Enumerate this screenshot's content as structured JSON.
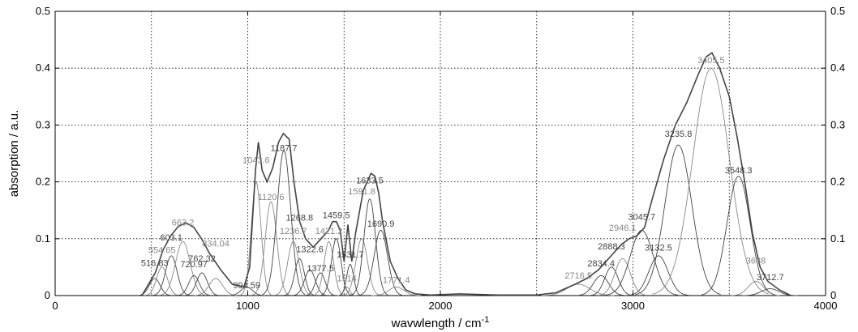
{
  "chart_data": {
    "type": "line",
    "xlabel": "wavwlength / cm-1",
    "ylabel": "absorption / a.u.",
    "xlim": [
      0,
      4000
    ],
    "ylim": [
      0,
      0.5
    ],
    "x_ticks": [
      0,
      1000,
      2000,
      3000,
      4000
    ],
    "x_tick_labels": [
      "0",
      "1000",
      "2000",
      "3000",
      "4000"
    ],
    "y_ticks": [
      0,
      0.1,
      0.2,
      0.3,
      0.4,
      0.5
    ],
    "y_tick_labels": [
      "0",
      "0.1",
      "0.2",
      "0.3",
      "0.4",
      "0.5"
    ],
    "x_grid_lines": [
      500,
      1000,
      1500,
      2000,
      2500,
      3000,
      3500
    ],
    "y_grid_lines": [
      0.1,
      0.2,
      0.3,
      0.4
    ],
    "grid": true,
    "grid_style": "dotted",
    "right_axis_mirrored": true,
    "envelope_color": "#444444",
    "series": [
      {
        "values": [
          [
            450,
            0.0
          ],
          [
            520,
            0.04
          ],
          [
            560,
            0.08
          ],
          [
            600,
            0.105
          ],
          [
            640,
            0.122
          ],
          [
            680,
            0.128
          ],
          [
            720,
            0.12
          ],
          [
            760,
            0.1
          ],
          [
            800,
            0.075
          ],
          [
            860,
            0.045
          ],
          [
            920,
            0.02
          ],
          [
            980,
            0.015
          ],
          [
            1010,
            0.05
          ],
          [
            1040,
            0.22
          ],
          [
            1055,
            0.27
          ],
          [
            1075,
            0.22
          ],
          [
            1100,
            0.2
          ],
          [
            1130,
            0.225
          ],
          [
            1160,
            0.27
          ],
          [
            1185,
            0.285
          ],
          [
            1215,
            0.275
          ],
          [
            1240,
            0.2
          ],
          [
            1270,
            0.13
          ],
          [
            1300,
            0.1
          ],
          [
            1340,
            0.085
          ],
          [
            1380,
            0.1
          ],
          [
            1420,
            0.115
          ],
          [
            1440,
            0.13
          ],
          [
            1460,
            0.13
          ],
          [
            1480,
            0.115
          ],
          [
            1500,
            0.06
          ],
          [
            1520,
            0.125
          ],
          [
            1540,
            0.06
          ],
          [
            1560,
            0.11
          ],
          [
            1600,
            0.185
          ],
          [
            1640,
            0.215
          ],
          [
            1660,
            0.21
          ],
          [
            1680,
            0.18
          ],
          [
            1700,
            0.13
          ],
          [
            1740,
            0.06
          ],
          [
            1780,
            0.03
          ],
          [
            1820,
            0.01
          ],
          [
            1870,
            0.003
          ],
          [
            1950,
            0.001
          ],
          [
            2100,
            0.003
          ],
          [
            2300,
            0.001
          ],
          [
            2500,
            0.001
          ],
          [
            2600,
            0.005
          ],
          [
            2700,
            0.02
          ],
          [
            2760,
            0.03
          ],
          [
            2820,
            0.045
          ],
          [
            2860,
            0.06
          ],
          [
            2900,
            0.075
          ],
          [
            2940,
            0.09
          ],
          [
            2980,
            0.1
          ],
          [
            3020,
            0.105
          ],
          [
            3060,
            0.12
          ],
          [
            3100,
            0.17
          ],
          [
            3160,
            0.24
          ],
          [
            3220,
            0.3
          ],
          [
            3280,
            0.34
          ],
          [
            3340,
            0.39
          ],
          [
            3380,
            0.42
          ],
          [
            3410,
            0.427
          ],
          [
            3450,
            0.4
          ],
          [
            3500,
            0.35
          ],
          [
            3540,
            0.28
          ],
          [
            3580,
            0.2
          ],
          [
            3620,
            0.11
          ],
          [
            3660,
            0.05
          ],
          [
            3700,
            0.025
          ],
          [
            3760,
            0.01
          ],
          [
            3820,
            0.0
          ]
        ]
      },
      {
        "name": "Lorentzian/Gaussian component peaks",
        "values": []
      }
    ],
    "peaks": [
      {
        "pos": 516.83,
        "height": 0.03,
        "width": 28,
        "label": "516.83",
        "color": "#444444"
      },
      {
        "pos": 554.65,
        "height": 0.05,
        "width": 28,
        "label": "554.65",
        "color": "#888888"
      },
      {
        "pos": 603.1,
        "height": 0.07,
        "width": 30,
        "label": "603.1",
        "color": "#444444"
      },
      {
        "pos": 663.2,
        "height": 0.095,
        "width": 38,
        "label": "663.2",
        "color": "#888888"
      },
      {
        "pos": 720.97,
        "height": 0.035,
        "width": 28,
        "label": "720.97",
        "color": "#444444"
      },
      {
        "pos": 762.32,
        "height": 0.04,
        "width": 28,
        "label": "762.32",
        "color": "#444444"
      },
      {
        "pos": 834.04,
        "height": 0.03,
        "width": 35,
        "label": "834.04",
        "color": "#888888"
      },
      {
        "pos": 994.59,
        "height": 0.015,
        "width": 30,
        "label": "994.59",
        "color": "#444444"
      },
      {
        "pos": 1043.6,
        "height": 0.2,
        "width": 25,
        "label": "1043.6",
        "color": "#888888"
      },
      {
        "pos": 1120.6,
        "height": 0.165,
        "width": 30,
        "label": "1120.6",
        "color": "#888888"
      },
      {
        "pos": 1187.7,
        "height": 0.255,
        "width": 35,
        "label": "1187.7",
        "color": "#444444"
      },
      {
        "pos": 1236.7,
        "height": 0.095,
        "width": 30,
        "label": "1236.7",
        "color": "#888888"
      },
      {
        "pos": 1268.8,
        "height": 0.065,
        "width": 25,
        "label": "1268.8",
        "color": "#444444"
      },
      {
        "pos": 1322.6,
        "height": 0.045,
        "width": 28,
        "label": "1322.6",
        "color": "#444444"
      },
      {
        "pos": 1377.5,
        "height": 0.04,
        "width": 25,
        "label": "1377.5",
        "color": "#444444"
      },
      {
        "pos": 1421.2,
        "height": 0.095,
        "width": 25,
        "label": "1421.2",
        "color": "#888888"
      },
      {
        "pos": 1459.5,
        "height": 0.1,
        "width": 25,
        "label": "1459.5",
        "color": "#444444"
      },
      {
        "pos": 1514,
        "height": 0.015,
        "width": 15,
        "label": "1514",
        "color": "#888888"
      },
      {
        "pos": 1531.7,
        "height": 0.055,
        "width": 18,
        "label": "1531.7",
        "color": "#444444"
      },
      {
        "pos": 1591.8,
        "height": 0.1,
        "width": 30,
        "label": "1591.8",
        "color": "#888888"
      },
      {
        "pos": 1633.5,
        "height": 0.17,
        "width": 30,
        "label": "1633.5",
        "color": "#444444"
      },
      {
        "pos": 1690.9,
        "height": 0.115,
        "width": 35,
        "label": "1690.9",
        "color": "#444444"
      },
      {
        "pos": 1771.4,
        "height": 0.015,
        "width": 40,
        "label": "1771.4",
        "color": "#888888"
      },
      {
        "pos": 2716.5,
        "height": 0.02,
        "width": 60,
        "label": "2716.5",
        "color": "#888888"
      },
      {
        "pos": 2834.4,
        "height": 0.035,
        "width": 40,
        "label": "2834.4",
        "color": "#444444"
      },
      {
        "pos": 2888.3,
        "height": 0.05,
        "width": 35,
        "label": "2888.3",
        "color": "#444444"
      },
      {
        "pos": 2946.1,
        "height": 0.065,
        "width": 40,
        "label": "2946.1",
        "color": "#888888"
      },
      {
        "pos": 3045.7,
        "height": 0.115,
        "width": 60,
        "label": "3045.7",
        "color": "#444444"
      },
      {
        "pos": 3132.5,
        "height": 0.07,
        "width": 50,
        "label": "3132.5",
        "color": "#444444"
      },
      {
        "pos": 3235.8,
        "height": 0.265,
        "width": 70,
        "label": "3235.8",
        "color": "#444444"
      },
      {
        "pos": 3405.5,
        "height": 0.4,
        "width": 95,
        "label": "3405.5",
        "color": "#888888"
      },
      {
        "pos": 3548.3,
        "height": 0.21,
        "width": 60,
        "label": "3548.3",
        "color": "#444444"
      },
      {
        "pos": 3638,
        "height": 0.025,
        "width": 40,
        "label": "3638",
        "color": "#888888"
      },
      {
        "pos": 3712.7,
        "height": 0.012,
        "width": 45,
        "label": "3712.7",
        "color": "#444444"
      }
    ],
    "peak_labels": [
      {
        "text": "516.83",
        "x": 516.83,
        "y": 0.052,
        "color": "#444444"
      },
      {
        "text": "554.65",
        "x": 554.65,
        "y": 0.075,
        "color": "#888888"
      },
      {
        "text": "603.1",
        "x": 603.1,
        "y": 0.097,
        "color": "#444444"
      },
      {
        "text": "663.2",
        "x": 663.2,
        "y": 0.123,
        "color": "#888888"
      },
      {
        "text": "720.97",
        "x": 720.97,
        "y": 0.05,
        "color": "#444444"
      },
      {
        "text": "762.32",
        "x": 762.32,
        "y": 0.06,
        "color": "#444444"
      },
      {
        "text": "834.04",
        "x": 834.04,
        "y": 0.086,
        "color": "#888888"
      },
      {
        "text": "994.59",
        "x": 994.59,
        "y": 0.013,
        "color": "#444444"
      },
      {
        "text": "1043.6",
        "x": 1043.6,
        "y": 0.233,
        "color": "#888888"
      },
      {
        "text": "1120.6",
        "x": 1120.6,
        "y": 0.168,
        "color": "#888888"
      },
      {
        "text": "1187.7",
        "x": 1187.7,
        "y": 0.254,
        "color": "#444444"
      },
      {
        "text": "1236.7",
        "x": 1236.7,
        "y": 0.108,
        "color": "#888888"
      },
      {
        "text": "1268.8",
        "x": 1268.8,
        "y": 0.132,
        "color": "#444444"
      },
      {
        "text": "1322.6",
        "x": 1322.6,
        "y": 0.076,
        "color": "#444444"
      },
      {
        "text": "1377.5",
        "x": 1377.5,
        "y": 0.043,
        "color": "#444444"
      },
      {
        "text": "1421.2",
        "x": 1421.2,
        "y": 0.108,
        "color": "#888888"
      },
      {
        "text": "1459.5",
        "x": 1459.5,
        "y": 0.136,
        "color": "#444444"
      },
      {
        "text": "1514",
        "x": 1514,
        "y": 0.025,
        "color": "#888888"
      },
      {
        "text": "1531.7",
        "x": 1531.7,
        "y": 0.067,
        "color": "#444444"
      },
      {
        "text": "1591.8",
        "x": 1591.8,
        "y": 0.178,
        "color": "#888888"
      },
      {
        "text": "1633.5",
        "x": 1633.5,
        "y": 0.197,
        "color": "#444444"
      },
      {
        "text": "1690.9",
        "x": 1690.9,
        "y": 0.121,
        "color": "#444444"
      },
      {
        "text": "1771.4",
        "x": 1771.4,
        "y": 0.022,
        "color": "#888888"
      },
      {
        "text": "2716.5",
        "x": 2716.5,
        "y": 0.03,
        "color": "#888888"
      },
      {
        "text": "2834.4",
        "x": 2834.4,
        "y": 0.051,
        "color": "#444444"
      },
      {
        "text": "2888.3",
        "x": 2888.3,
        "y": 0.081,
        "color": "#444444"
      },
      {
        "text": "2946.1",
        "x": 2946.1,
        "y": 0.114,
        "color": "#888888"
      },
      {
        "text": "3045.7",
        "x": 3045.7,
        "y": 0.133,
        "color": "#444444"
      },
      {
        "text": "3132.5",
        "x": 3132.5,
        "y": 0.079,
        "color": "#444444"
      },
      {
        "text": "3235.8",
        "x": 3235.8,
        "y": 0.279,
        "color": "#444444"
      },
      {
        "text": "3405.5",
        "x": 3405.5,
        "y": 0.409,
        "color": "#888888"
      },
      {
        "text": "3548.3",
        "x": 3548.3,
        "y": 0.215,
        "color": "#444444"
      },
      {
        "text": "3638",
        "x": 3638,
        "y": 0.056,
        "color": "#888888"
      },
      {
        "text": "3712.7",
        "x": 3712.7,
        "y": 0.027,
        "color": "#444444"
      }
    ]
  }
}
